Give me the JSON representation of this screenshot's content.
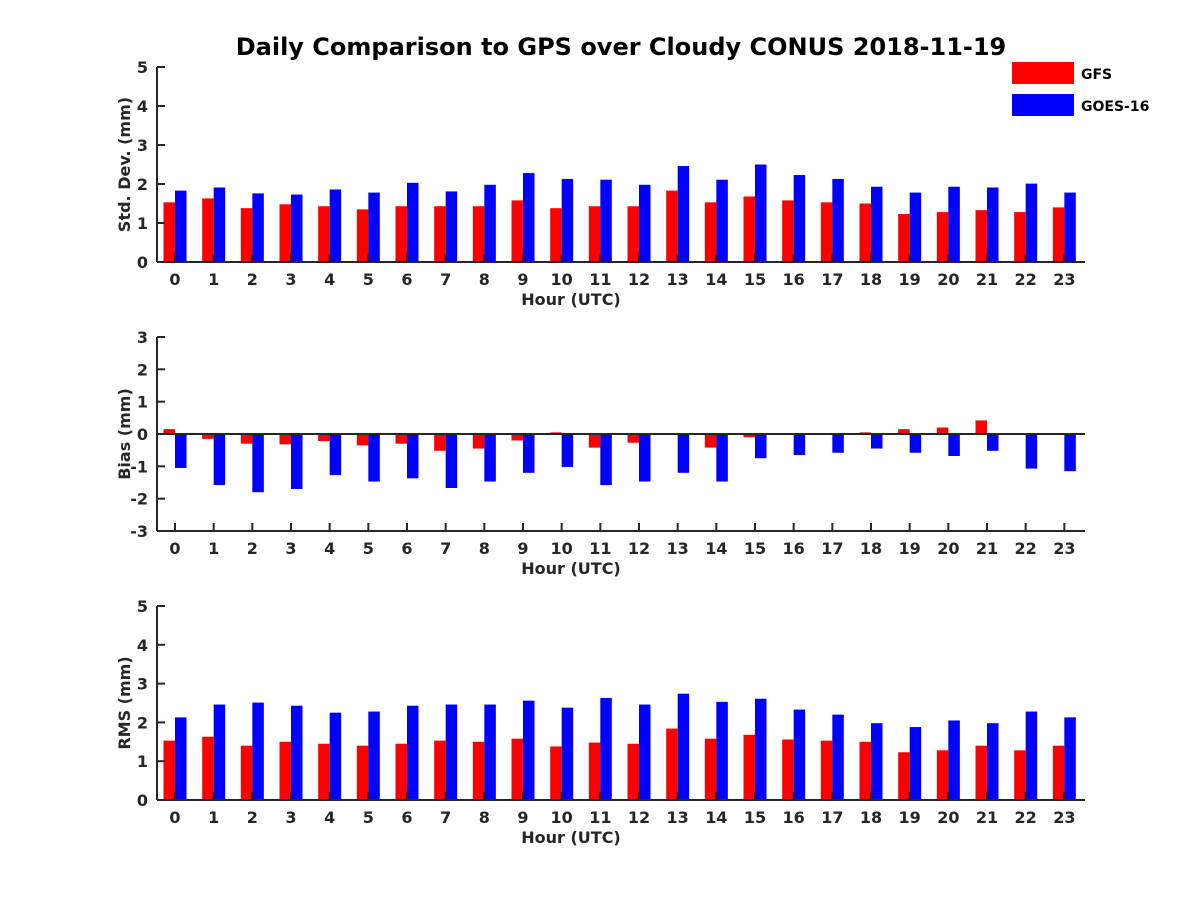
{
  "figure": {
    "title": "Daily Comparison to GPS over Cloudy CONUS 2018-11-19"
  },
  "colors": {
    "gfs": "#ff0000",
    "goes16": "#0000ff",
    "axis": "#262626"
  },
  "legend": {
    "placement": "top-right",
    "items": [
      {
        "label": "GFS",
        "color": "#ff0000"
      },
      {
        "label": "GOES-16",
        "color": "#0000ff"
      }
    ]
  },
  "chart_data": [
    {
      "type": "bar",
      "xlabel": "Hour (UTC)",
      "ylabel": "Std. Dev. (mm)",
      "ylim": [
        0,
        5
      ],
      "yticks": [
        0,
        1,
        2,
        3,
        4,
        5
      ],
      "categories": [
        "0",
        "1",
        "2",
        "3",
        "4",
        "5",
        "6",
        "7",
        "8",
        "9",
        "10",
        "11",
        "12",
        "13",
        "14",
        "15",
        "16",
        "17",
        "18",
        "19",
        "20",
        "21",
        "22",
        "23"
      ],
      "series": [
        {
          "name": "GFS",
          "values": [
            1.53,
            1.63,
            1.38,
            1.48,
            1.43,
            1.35,
            1.43,
            1.43,
            1.43,
            1.58,
            1.38,
            1.43,
            1.43,
            1.83,
            1.53,
            1.68,
            1.58,
            1.53,
            1.5,
            1.23,
            1.28,
            1.33,
            1.28,
            1.4
          ]
        },
        {
          "name": "GOES-16",
          "values": [
            1.83,
            1.91,
            1.76,
            1.73,
            1.86,
            1.78,
            2.03,
            1.81,
            1.98,
            2.28,
            2.13,
            2.11,
            1.98,
            2.46,
            2.11,
            2.5,
            2.23,
            2.13,
            1.93,
            1.78,
            1.93,
            1.91,
            2.01,
            1.78
          ]
        }
      ]
    },
    {
      "type": "bar",
      "xlabel": "Hour (UTC)",
      "ylabel": "Bias (mm)",
      "ylim": [
        -3,
        3
      ],
      "yticks": [
        -3,
        -2,
        -1,
        0,
        1,
        2,
        3
      ],
      "categories": [
        "0",
        "1",
        "2",
        "3",
        "4",
        "5",
        "6",
        "7",
        "8",
        "9",
        "10",
        "11",
        "12",
        "13",
        "14",
        "15",
        "16",
        "17",
        "18",
        "19",
        "20",
        "21",
        "22",
        "23"
      ],
      "series": [
        {
          "name": "GFS",
          "values": [
            0.15,
            -0.15,
            -0.3,
            -0.32,
            -0.22,
            -0.35,
            -0.3,
            -0.52,
            -0.45,
            -0.2,
            0.05,
            -0.42,
            -0.27,
            0.0,
            -0.42,
            -0.1,
            -0.03,
            -0.03,
            0.05,
            0.15,
            0.2,
            0.42,
            0.03,
            0.0
          ]
        },
        {
          "name": "GOES-16",
          "values": [
            -1.05,
            -1.58,
            -1.8,
            -1.7,
            -1.27,
            -1.47,
            -1.37,
            -1.67,
            -1.47,
            -1.2,
            -1.02,
            -1.58,
            -1.47,
            -1.2,
            -1.47,
            -0.75,
            -0.65,
            -0.58,
            -0.45,
            -0.58,
            -0.68,
            -0.52,
            -1.07,
            -1.15
          ]
        }
      ]
    },
    {
      "type": "bar",
      "xlabel": "Hour (UTC)",
      "ylabel": "RMS (mm)",
      "ylim": [
        0,
        5
      ],
      "yticks": [
        0,
        1,
        2,
        3,
        4,
        5
      ],
      "categories": [
        "0",
        "1",
        "2",
        "3",
        "4",
        "5",
        "6",
        "7",
        "8",
        "9",
        "10",
        "11",
        "12",
        "13",
        "14",
        "15",
        "16",
        "17",
        "18",
        "19",
        "20",
        "21",
        "22",
        "23"
      ],
      "series": [
        {
          "name": "GFS",
          "values": [
            1.53,
            1.63,
            1.4,
            1.5,
            1.45,
            1.4,
            1.45,
            1.53,
            1.5,
            1.58,
            1.38,
            1.48,
            1.45,
            1.84,
            1.58,
            1.68,
            1.56,
            1.53,
            1.5,
            1.23,
            1.28,
            1.4,
            1.28,
            1.4
          ]
        },
        {
          "name": "GOES-16",
          "values": [
            2.13,
            2.46,
            2.51,
            2.43,
            2.25,
            2.28,
            2.43,
            2.46,
            2.46,
            2.56,
            2.38,
            2.63,
            2.46,
            2.74,
            2.53,
            2.61,
            2.33,
            2.2,
            1.98,
            1.88,
            2.05,
            1.98,
            2.28,
            2.13
          ]
        }
      ]
    }
  ]
}
